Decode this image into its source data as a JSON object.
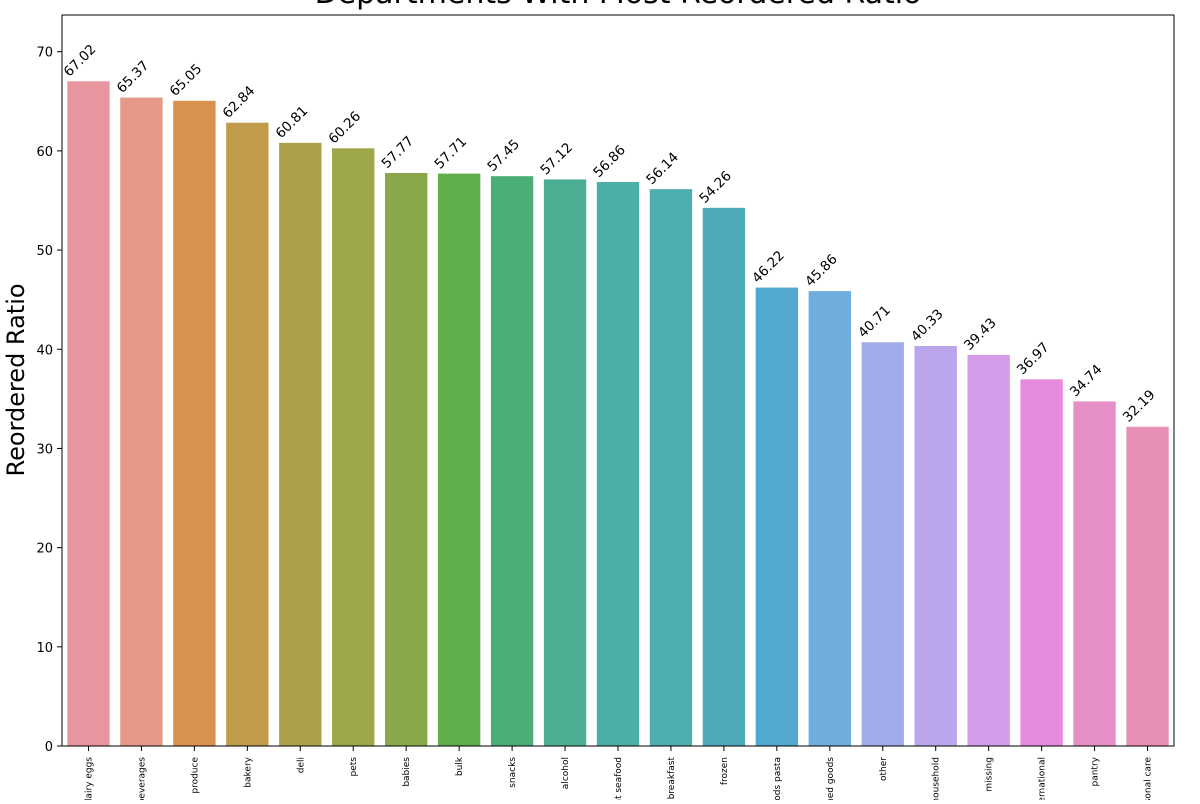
{
  "chart_data": {
    "type": "bar",
    "title": "Departments With Most Reordered Ratio",
    "xlabel": "",
    "ylabel": "Reordered Ratio",
    "ylim": [
      0,
      73.7
    ],
    "yticks": [
      0,
      10,
      20,
      30,
      40,
      50,
      60,
      70
    ],
    "grid": false,
    "categories": [
      "dairy eggs",
      "beverages",
      "produce",
      "bakery",
      "deli",
      "pets",
      "babies",
      "bulk",
      "snacks",
      "alcohol",
      "meat seafood",
      "breakfast",
      "frozen",
      "dry goods pasta",
      "canned goods",
      "other",
      "household",
      "missing",
      "international",
      "pantry",
      "personal care"
    ],
    "values": [
      67.02,
      65.37,
      65.05,
      62.84,
      60.81,
      60.26,
      57.77,
      57.71,
      57.45,
      57.12,
      56.86,
      56.14,
      54.26,
      46.22,
      45.86,
      40.71,
      40.33,
      39.43,
      36.97,
      34.74,
      32.19
    ],
    "data_labels": [
      "67.02",
      "65.37",
      "65.05",
      "62.84",
      "60.81",
      "60.26",
      "57.77",
      "57.71",
      "57.45",
      "57.12",
      "56.86",
      "56.14",
      "54.26",
      "46.22",
      "45.86",
      "40.71",
      "40.33",
      "39.43",
      "36.97",
      "34.74",
      "32.19"
    ],
    "colors": [
      "#e8959f",
      "#e69988",
      "#d8914f",
      "#c19b4c",
      "#aca04b",
      "#9ea64a",
      "#89a84a",
      "#60ae4b",
      "#4bae79",
      "#4bae93",
      "#4caea4",
      "#4dadaf",
      "#4eaabb",
      "#52a9d0",
      "#6eadde",
      "#a1aceb",
      "#bba6ec",
      "#d49be9",
      "#e68ade",
      "#e68fc6",
      "#e78fb4"
    ]
  }
}
